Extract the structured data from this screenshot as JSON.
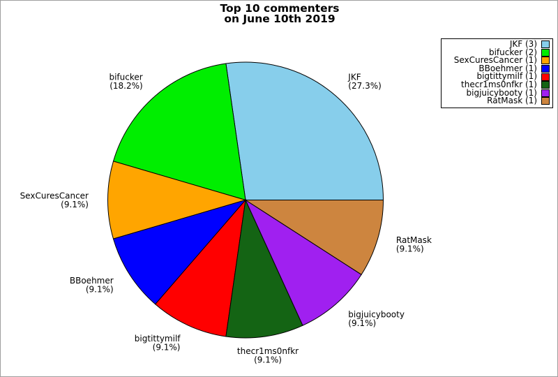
{
  "chart_data": {
    "type": "pie",
    "title": "Top 10 commenters",
    "subtitle": "on June 10th 2019",
    "start_angle_deg": 0,
    "direction": "counterclockwise",
    "legend_position": "upper right",
    "total": 11,
    "slices": [
      {
        "label": "JKF",
        "value": 3,
        "pct_text": "(27.3%)",
        "legend_text": "JKF (3)",
        "color": "#87CEEB"
      },
      {
        "label": "bifucker",
        "value": 2,
        "pct_text": "(18.2%)",
        "legend_text": "bifucker (2)",
        "color": "#00EE00"
      },
      {
        "label": "SexCuresCancer",
        "value": 1,
        "pct_text": "(9.1%)",
        "legend_text": "SexCuresCancer (1)",
        "color": "#FFA500"
      },
      {
        "label": "BBoehmer",
        "value": 1,
        "pct_text": "(9.1%)",
        "legend_text": "BBoehmer (1)",
        "color": "#0000FF"
      },
      {
        "label": "bigtittymilf",
        "value": 1,
        "pct_text": "(9.1%)",
        "legend_text": "bigtittymilf (1)",
        "color": "#FF0000"
      },
      {
        "label": "thecr1ms0nfkr",
        "value": 1,
        "pct_text": "(9.1%)",
        "legend_text": "thecr1ms0nfkr (1)",
        "color": "#146414"
      },
      {
        "label": "bigjuicybooty",
        "value": 1,
        "pct_text": "(9.1%)",
        "legend_text": "bigjuicybooty (1)",
        "color": "#A020F0"
      },
      {
        "label": "RatMask",
        "value": 1,
        "pct_text": "(9.1%)",
        "legend_text": "RatMask (1)",
        "color": "#CD853F"
      }
    ]
  }
}
